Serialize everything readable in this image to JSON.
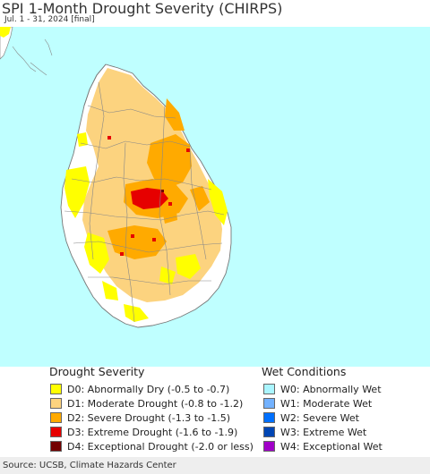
{
  "header": {
    "title": "SPI 1-Month Drought Severity (CHIRPS)",
    "subtitle": "Jul. 1 - 31, 2024 [final]"
  },
  "legend": {
    "drought_heading": "Drought Severity",
    "wet_heading": "Wet Conditions",
    "drought_items": [
      {
        "label": "D0: Abnormally Dry (-0.5 to -0.7)",
        "color": "#ffff00"
      },
      {
        "label": "D1: Moderate Drought (-0.8 to -1.2)",
        "color": "#fcd37f"
      },
      {
        "label": "D2: Severe Drought (-1.3 to -1.5)",
        "color": "#ffaa00"
      },
      {
        "label": "D3: Extreme Drought (-1.6 to -1.9)",
        "color": "#e60000"
      },
      {
        "label": "D4: Exceptional Drought (-2.0 or less)",
        "color": "#730000"
      }
    ],
    "wet_items": [
      {
        "label": "W0: Abnormally Wet",
        "color": "#aaf5ff"
      },
      {
        "label": "W1: Moderate Wet",
        "color": "#73b2ff"
      },
      {
        "label": "W2: Severe Wet",
        "color": "#0070ff"
      },
      {
        "label": "W3: Extreme Wet",
        "color": "#0046b4"
      },
      {
        "label": "W4: Exceptional Wet",
        "color": "#a000c8"
      }
    ]
  },
  "map": {
    "ocean_color": "#bfffff",
    "land_color": "#ffffff",
    "border_color": "#888888"
  },
  "footer": {
    "source": "Source: UCSB, Climate Hazards Center"
  }
}
